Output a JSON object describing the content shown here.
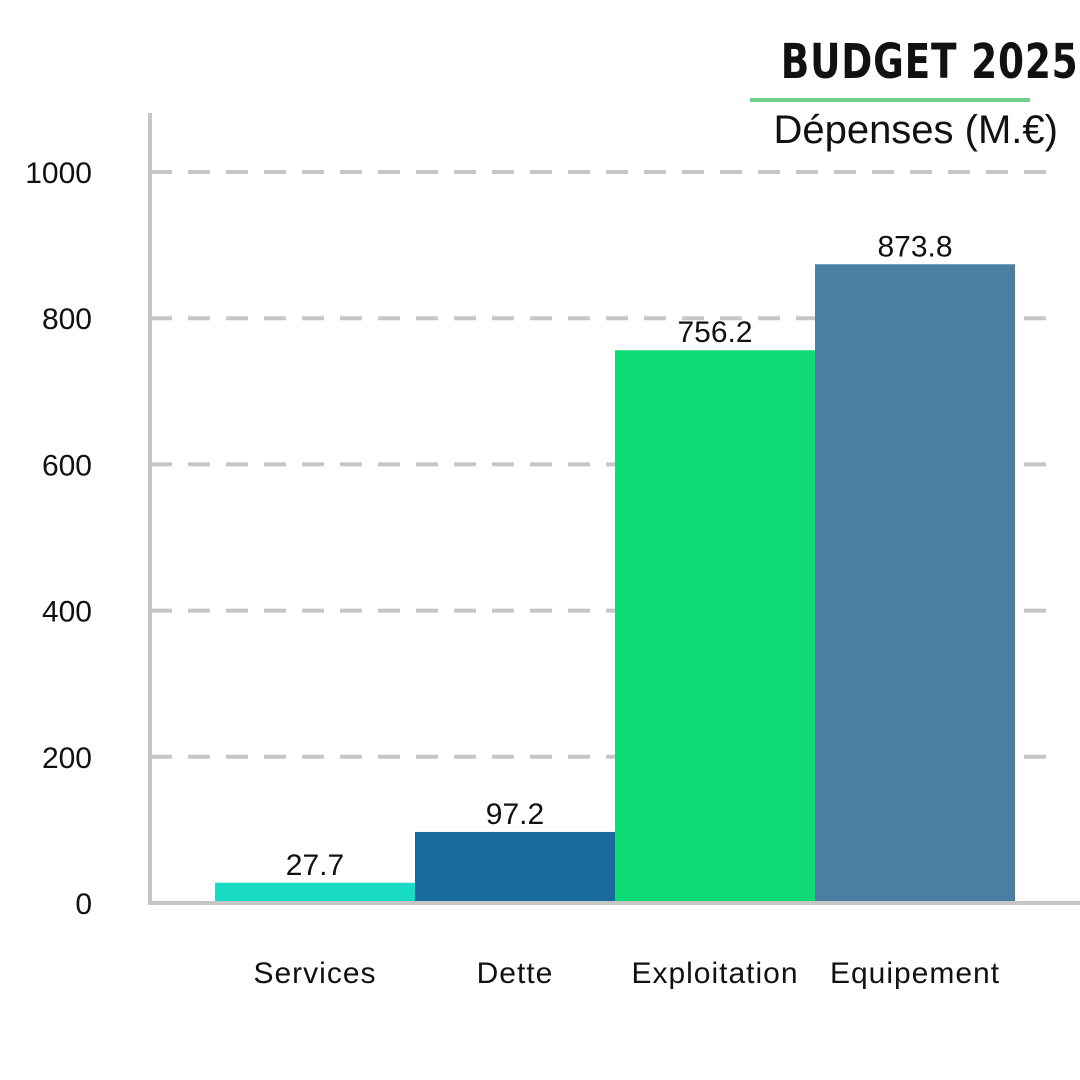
{
  "title": "BUDGET 2025",
  "subtitle": "Dépenses (M.€)",
  "colors": {
    "grid": "#c6c6c6",
    "axis": "#c6c6c6",
    "title_rule": "#6fd08c",
    "text": "#111111"
  },
  "chart_data": {
    "type": "bar",
    "title": "BUDGET 2025",
    "subtitle": "Dépenses (M.€)",
    "categories": [
      "Services",
      "Dette",
      "Exploitation",
      "Equipement"
    ],
    "values": [
      27.7,
      97.2,
      756.2,
      873.8
    ],
    "value_labels": [
      "27.7",
      "97.2",
      "756.2",
      "873.8"
    ],
    "bar_colors": [
      "#19dbc6",
      "#1a6a9e",
      "#0edb74",
      "#4a7fa3"
    ],
    "ylim": [
      0,
      1000
    ],
    "yticks": [
      "0",
      "200",
      "400",
      "600",
      "800",
      "1000"
    ],
    "ytick_values": [
      0,
      200,
      400,
      600,
      800,
      1000
    ],
    "grid": "dashed-horizontal",
    "xlabel": "",
    "ylabel": ""
  }
}
